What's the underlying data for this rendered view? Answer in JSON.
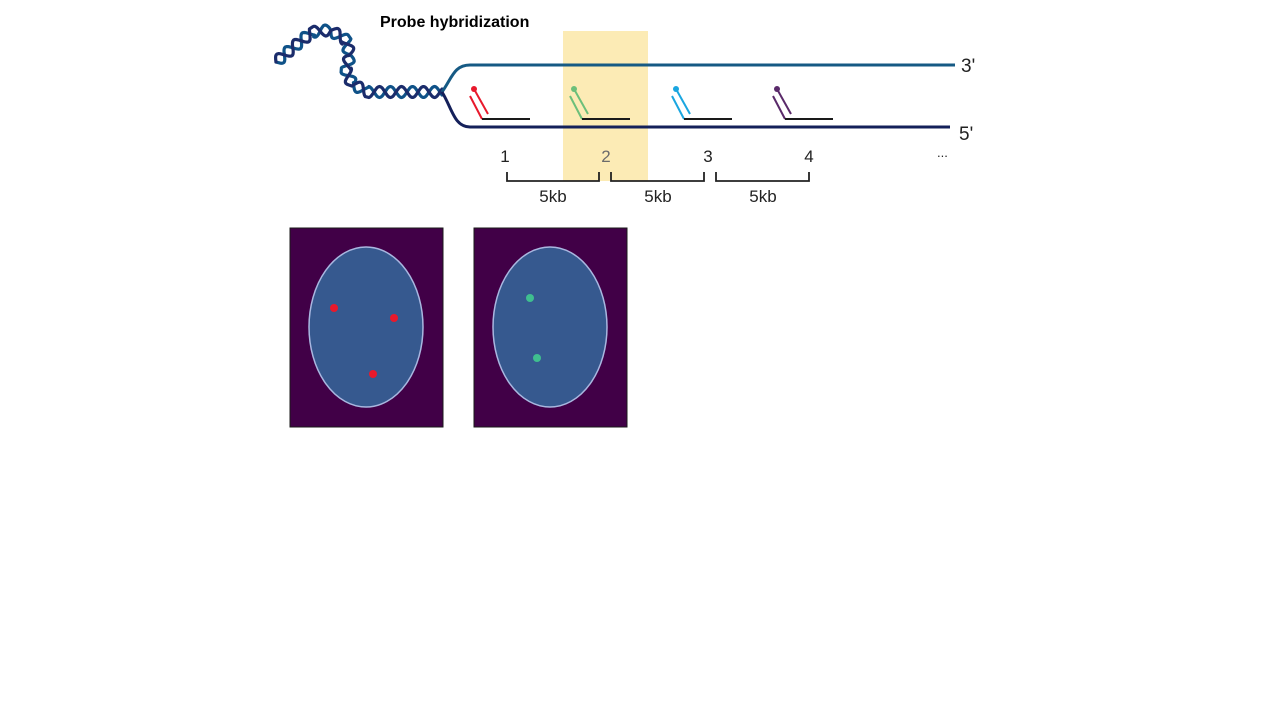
{
  "title": "Probe hybridization",
  "strand_top_label": "3'",
  "strand_bottom_label": "5'",
  "positions": [
    "1",
    "2",
    "3",
    "4"
  ],
  "ellipsis": "...",
  "spacing_labels": [
    "5kb",
    "5kb",
    "5kb"
  ],
  "colors": {
    "helix_a": "#0f5288",
    "helix_b": "#1b2c6b",
    "strand_top": "#165a84",
    "strand_bottom": "#14205a",
    "highlight": "#fbe7a8",
    "probes": [
      "#e8192c",
      "#6cbf7a",
      "#1aa6e0",
      "#5a2a6a"
    ],
    "panel_bg": "#410047",
    "nucleus_fill": "#36598f",
    "nucleus_stroke": "#a9b7e0",
    "spot_red": "#e8192c",
    "spot_green": "#3fbf8f"
  },
  "panels": [
    {
      "spots": 3,
      "spot_color": "spot_red"
    },
    {
      "spots": 2,
      "spot_color": "spot_green"
    }
  ]
}
